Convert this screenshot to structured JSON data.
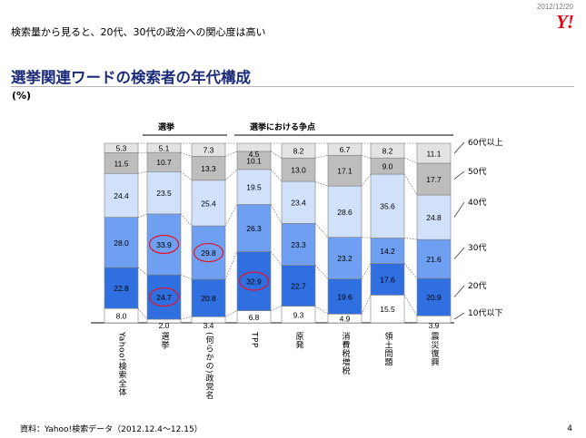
{
  "header": {
    "date": "2012/12/20",
    "logo": "Y!",
    "subtitle": "検索量から見ると、20代、30代の政治への関心度は高い"
  },
  "slide": {
    "title": "選挙関連ワードの検索者の年代構成",
    "unit": "(%)",
    "source": "資料：Yahoo!検索データ（2012.12.4～12.15）",
    "page_number": "4"
  },
  "chart_data": {
    "type": "bar",
    "stacked": true,
    "normalized": true,
    "group_labels": [
      "選挙",
      "選挙における争点"
    ],
    "categories": [
      "Yahoo!検索全体",
      "選挙",
      "(何らかの)政党名",
      "TPP",
      "原発",
      "消費税増税",
      "領土問題",
      "震災復興"
    ],
    "series": [
      {
        "name": "10代以下",
        "color": "#ffffff",
        "values": [
          8.0,
          2.0,
          3.4,
          6.8,
          9.3,
          4.9,
          15.5,
          3.9
        ]
      },
      {
        "name": "20代",
        "color": "#2f6fe0",
        "values": [
          22.8,
          24.7,
          20.8,
          32.9,
          22.7,
          19.6,
          17.6,
          20.9
        ]
      },
      {
        "name": "30代",
        "color": "#6f9ff0",
        "values": [
          28.0,
          33.9,
          29.8,
          26.3,
          23.3,
          23.2,
          14.2,
          21.6
        ]
      },
      {
        "name": "40代",
        "color": "#d1e1fa",
        "values": [
          24.4,
          23.5,
          25.4,
          19.5,
          23.4,
          28.6,
          35.6,
          24.8
        ]
      },
      {
        "name": "50代",
        "color": "#bdbdbd",
        "values": [
          11.5,
          10.7,
          13.3,
          10.1,
          13.0,
          17.1,
          9.0,
          17.7
        ]
      },
      {
        "name": "60代以上",
        "color": "#e3e3e3",
        "values": [
          5.3,
          5.1,
          7.3,
          4.5,
          8.2,
          6.7,
          8.2,
          11.1
        ]
      }
    ],
    "value_labels": [
      [
        "8.0",
        "22.8",
        "28.0",
        "24.4",
        "11.5",
        "5.3"
      ],
      [
        "2.0",
        "24.7",
        "33.9",
        "23.5",
        "10.7",
        "5.1"
      ],
      [
        "3.4",
        "20.8",
        "29.8",
        "25.4",
        "13.3",
        "7.3"
      ],
      [
        "6.8",
        "32.9",
        "26.3",
        "19.5",
        "10.1",
        "4.5"
      ],
      [
        "9.3",
        "22.7",
        "23.3",
        "23.4",
        "13.0",
        "8.2"
      ],
      [
        "4.9",
        "19.6",
        "23.2",
        "28.6",
        "17.1",
        "6.7"
      ],
      [
        "15.5",
        "17.6",
        "14.2",
        "35.6",
        "9.0",
        "8.2"
      ],
      [
        "3.9",
        "20.9",
        "21.6",
        "24.8",
        "17.7",
        "11.1"
      ]
    ],
    "highlighted": [
      {
        "category": "選挙",
        "series": "20代"
      },
      {
        "category": "選挙",
        "series": "30代"
      },
      {
        "category": "(何らかの)政党名",
        "series": "30代"
      },
      {
        "category": "TPP",
        "series": "20代"
      }
    ],
    "highlight_color": "#e0142a",
    "legend_position": "right",
    "ylim": [
      0,
      100
    ]
  }
}
